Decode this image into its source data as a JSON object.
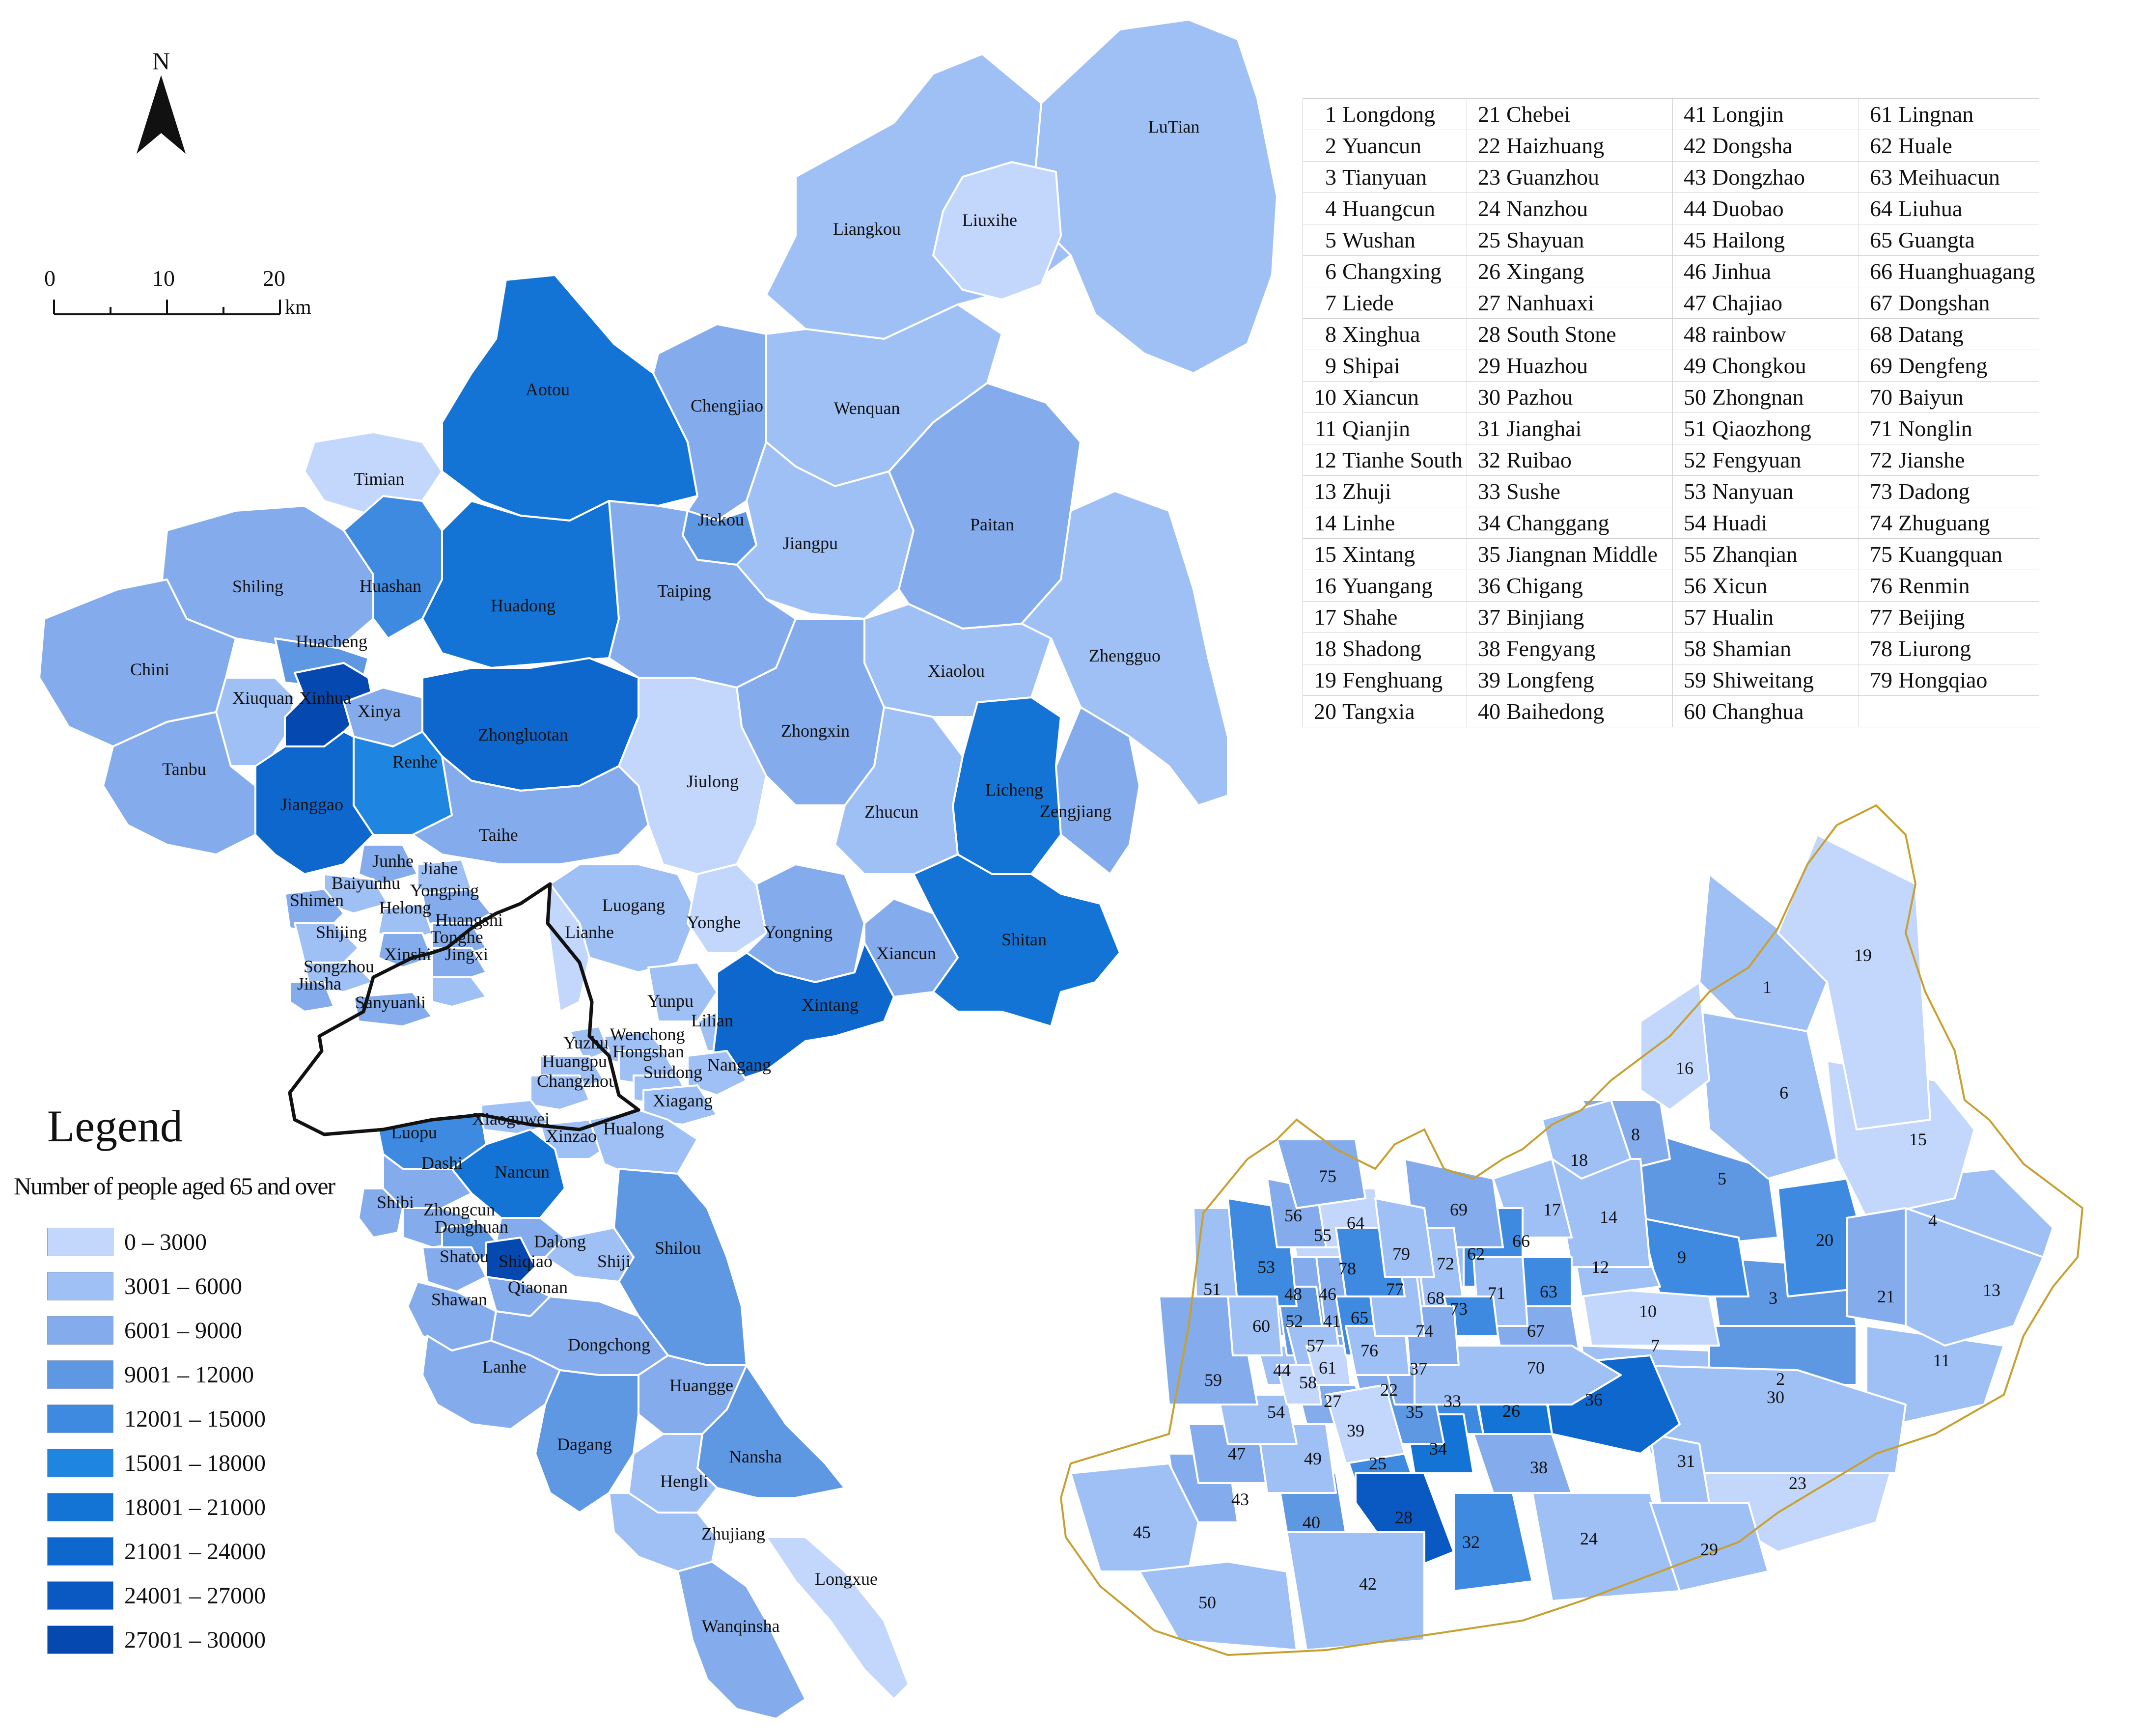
{
  "north_label": "N",
  "scale": {
    "ticks": [
      "0",
      "10",
      "20"
    ],
    "unit": "km"
  },
  "legend": {
    "title": "Legend",
    "subtitle": "Number of people aged 65 and over",
    "classes": [
      {
        "label": "0 – 3000",
        "color": "#c2d7fb"
      },
      {
        "label": "3001 – 6000",
        "color": "#9fc0f5"
      },
      {
        "label": "6001 – 9000",
        "color": "#84acec"
      },
      {
        "label": "9001 – 12000",
        "color": "#5f98e2"
      },
      {
        "label": "12001 – 15000",
        "color": "#3d8ae0"
      },
      {
        "label": "15001 – 18000",
        "color": "#1e86e0"
      },
      {
        "label": "18001 – 21000",
        "color": "#1474d6"
      },
      {
        "label": "21001 – 24000",
        "color": "#0e67cc"
      },
      {
        "label": "24001 – 27000",
        "color": "#0a58c2"
      },
      {
        "label": "27001 – 30000",
        "color": "#0548b0"
      }
    ]
  },
  "index_table": [
    [
      "1",
      "Longdong",
      "21",
      "Chebei",
      "41",
      "Longjin",
      "61",
      "Lingnan"
    ],
    [
      "2",
      "Yuancun",
      "22",
      "Haizhuang",
      "42",
      "Dongsha",
      "62",
      "Huale"
    ],
    [
      "3",
      "Tianyuan",
      "23",
      "Guanzhou",
      "43",
      "Dongzhao",
      "63",
      "Meihuacun"
    ],
    [
      "4",
      "Huangcun",
      "24",
      "Nanzhou",
      "44",
      "Duobao",
      "64",
      "Liuhua"
    ],
    [
      "5",
      "Wushan",
      "25",
      "Shayuan",
      "45",
      "Hailong",
      "65",
      "Guangta"
    ],
    [
      "6",
      "Changxing",
      "26",
      "Xingang",
      "46",
      "Jinhua",
      "66",
      "Huanghuagang"
    ],
    [
      "7",
      "Liede",
      "27",
      "Nanhuaxi",
      "47",
      "Chajiao",
      "67",
      "Dongshan"
    ],
    [
      "8",
      "Xinghua",
      "28",
      "South Stone",
      "48",
      "rainbow",
      "68",
      "Datang"
    ],
    [
      "9",
      "Shipai",
      "29",
      "Huazhou",
      "49",
      "Chongkou",
      "69",
      "Dengfeng"
    ],
    [
      "10",
      "Xiancun",
      "30",
      "Pazhou",
      "50",
      "Zhongnan",
      "70",
      "Baiyun"
    ],
    [
      "11",
      "Qianjin",
      "31",
      "Jianghai",
      "51",
      "Qiaozhong",
      "71",
      "Nonglin"
    ],
    [
      "12",
      "Tianhe South",
      "32",
      "Ruibao",
      "52",
      "Fengyuan",
      "72",
      "Jianshe"
    ],
    [
      "13",
      "Zhuji",
      "33",
      "Sushe",
      "53",
      "Nanyuan",
      "73",
      "Dadong"
    ],
    [
      "14",
      "Linhe",
      "34",
      "Changgang",
      "54",
      "Huadi",
      "74",
      "Zhuguang"
    ],
    [
      "15",
      "Xintang",
      "35",
      "Jiangnan Middle",
      "55",
      "Zhanqian",
      "75",
      "Kuangquan"
    ],
    [
      "16",
      "Yuangang",
      "36",
      "Chigang",
      "56",
      "Xicun",
      "76",
      "Renmin"
    ],
    [
      "17",
      "Shahe",
      "37",
      "Binjiang",
      "57",
      "Hualin",
      "77",
      "Beijing"
    ],
    [
      "18",
      "Shadong",
      "38",
      "Fengyang",
      "58",
      "Shamian",
      "78",
      "Liurong"
    ],
    [
      "19",
      "Fenghuang",
      "39",
      "Longfeng",
      "59",
      "Shiweitang",
      "79",
      "Hongqiao"
    ],
    [
      "20",
      "Tangxia",
      "40",
      "Baihedong",
      "60",
      "Changhua",
      "",
      ""
    ]
  ],
  "regions": [
    {
      "name": "LuTian",
      "color": "#9fc0f5"
    },
    {
      "name": "Liangkou",
      "color": "#9fc0f5"
    },
    {
      "name": "Liuxihe",
      "color": "#c2d7fb"
    },
    {
      "name": "Aotou",
      "color": "#1474d6"
    },
    {
      "name": "Chengjiao",
      "color": "#84acec"
    },
    {
      "name": "Wenquan",
      "color": "#9fc0f5"
    },
    {
      "name": "Timian",
      "color": "#c2d7fb"
    },
    {
      "name": "Jiekou",
      "color": "#5f98e2"
    },
    {
      "name": "Jiangpu",
      "color": "#9fc0f5"
    },
    {
      "name": "Paitan",
      "color": "#84acec"
    },
    {
      "name": "Shiling",
      "color": "#84acec"
    },
    {
      "name": "Huashan",
      "color": "#3d8ae0"
    },
    {
      "name": "Huadong",
      "color": "#1474d6"
    },
    {
      "name": "Taiping",
      "color": "#84acec"
    },
    {
      "name": "Chini",
      "color": "#84acec"
    },
    {
      "name": "Huacheng",
      "color": "#5f98e2"
    },
    {
      "name": "Xiuquan",
      "color": "#9fc0f5"
    },
    {
      "name": "Xinhua",
      "color": "#0548b0"
    },
    {
      "name": "Xinya",
      "color": "#84acec"
    },
    {
      "name": "Zhongluotan",
      "color": "#0e67cc"
    },
    {
      "name": "Xiaolou",
      "color": "#9fc0f5"
    },
    {
      "name": "Zhengguo",
      "color": "#9fc0f5"
    },
    {
      "name": "Zhongxin",
      "color": "#84acec"
    },
    {
      "name": "Tanbu",
      "color": "#84acec"
    },
    {
      "name": "Renhe",
      "color": "#1e86e0"
    },
    {
      "name": "Jianggao",
      "color": "#0e67cc"
    },
    {
      "name": "Jiulong",
      "color": "#c2d7fb"
    },
    {
      "name": "Licheng",
      "color": "#1474d6"
    },
    {
      "name": "Zengjiang",
      "color": "#84acec"
    },
    {
      "name": "Zhucun",
      "color": "#9fc0f5"
    },
    {
      "name": "Taihe",
      "color": "#84acec"
    },
    {
      "name": "Junhe",
      "color": "#84acec"
    },
    {
      "name": "Jiahe",
      "color": "#9fc0f5"
    },
    {
      "name": "Baiyunhu",
      "color": "#9fc0f5"
    },
    {
      "name": "Yongping",
      "color": "#84acec"
    },
    {
      "name": "Shimen",
      "color": "#84acec"
    },
    {
      "name": "Helong",
      "color": "#9fc0f5"
    },
    {
      "name": "Huangshi",
      "color": "#84acec"
    },
    {
      "name": "Luogang",
      "color": "#9fc0f5"
    },
    {
      "name": "Yonghe",
      "color": "#c2d7fb"
    },
    {
      "name": "Yongning",
      "color": "#84acec"
    },
    {
      "name": "Xiancun",
      "color": "#84acec"
    },
    {
      "name": "Shitan",
      "color": "#1474d6"
    },
    {
      "name": "Shijing",
      "color": "#9fc0f5"
    },
    {
      "name": "Tonghe",
      "color": "#84acec"
    },
    {
      "name": "Lianhe",
      "color": "#c2d7fb"
    },
    {
      "name": "Songzhou",
      "color": "#9fc0f5"
    },
    {
      "name": "Xinshi",
      "color": "#84acec"
    },
    {
      "name": "Jingxi",
      "color": "#9fc0f5"
    },
    {
      "name": "Jinsha",
      "color": "#84acec"
    },
    {
      "name": "Sanyuanli",
      "color": "#84acec"
    },
    {
      "name": "Dashi",
      "color": "#84acec"
    },
    {
      "name": "Yunpu",
      "color": "#9fc0f5"
    },
    {
      "name": "Lilian",
      "color": "#9fc0f5"
    },
    {
      "name": "Xintang",
      "color": "#0e67cc"
    },
    {
      "name": "Wenchong",
      "color": "#9fc0f5"
    },
    {
      "name": "Hongshan",
      "color": "#9fc0f5"
    },
    {
      "name": "Yuzhu",
      "color": "#9fc0f5"
    },
    {
      "name": "Nangang",
      "color": "#9fc0f5"
    },
    {
      "name": "Huangpu",
      "color": "#9fc0f5"
    },
    {
      "name": "Suidong",
      "color": "#9fc0f5"
    },
    {
      "name": "Changzhou",
      "color": "#9fc0f5"
    },
    {
      "name": "Xiagang",
      "color": "#9fc0f5"
    },
    {
      "name": "Xiaoguwei",
      "color": "#9fc0f5"
    },
    {
      "name": "Xinzao",
      "color": "#9fc0f5"
    },
    {
      "name": "Hualong",
      "color": "#9fc0f5"
    },
    {
      "name": "Luopu",
      "color": "#3d8ae0"
    },
    {
      "name": "Nancun",
      "color": "#1474d6"
    },
    {
      "name": "Shibi",
      "color": "#84acec"
    },
    {
      "name": "Zhongcun",
      "color": "#84acec"
    },
    {
      "name": "Donghuan",
      "color": "#5f98e2"
    },
    {
      "name": "Dalong",
      "color": "#84acec"
    },
    {
      "name": "Shiqiao",
      "color": "#0548b0"
    },
    {
      "name": "Shatou",
      "color": "#84acec"
    },
    {
      "name": "Qiaonan",
      "color": "#84acec"
    },
    {
      "name": "Shiji",
      "color": "#9fc0f5"
    },
    {
      "name": "Shilou",
      "color": "#5f98e2"
    },
    {
      "name": "Shawan",
      "color": "#84acec"
    },
    {
      "name": "Dongchong",
      "color": "#84acec"
    },
    {
      "name": "Lanhe",
      "color": "#84acec"
    },
    {
      "name": "Huangge",
      "color": "#84acec"
    },
    {
      "name": "Dagang",
      "color": "#5f98e2"
    },
    {
      "name": "Nansha",
      "color": "#5f98e2"
    },
    {
      "name": "Hengli",
      "color": "#9fc0f5"
    },
    {
      "name": "Zhujiang",
      "color": "#9fc0f5"
    },
    {
      "name": "Longxue",
      "color": "#c2d7fb"
    },
    {
      "name": "Wanqinsha",
      "color": "#84acec"
    }
  ],
  "inset_regions": [
    {
      "id": "1",
      "color": "#9fc0f5"
    },
    {
      "id": "2",
      "color": "#5f98e2"
    },
    {
      "id": "3",
      "color": "#5f98e2"
    },
    {
      "id": "4",
      "color": "#9fc0f5"
    },
    {
      "id": "5",
      "color": "#5f98e2"
    },
    {
      "id": "6",
      "color": "#9fc0f5"
    },
    {
      "id": "7",
      "color": "#9fc0f5"
    },
    {
      "id": "8",
      "color": "#84acec"
    },
    {
      "id": "9",
      "color": "#3d8ae0"
    },
    {
      "id": "10",
      "color": "#c2d7fb"
    },
    {
      "id": "11",
      "color": "#9fc0f5"
    },
    {
      "id": "12",
      "color": "#9fc0f5"
    },
    {
      "id": "13",
      "color": "#9fc0f5"
    },
    {
      "id": "14",
      "color": "#9fc0f5"
    },
    {
      "id": "15",
      "color": "#c2d7fb"
    },
    {
      "id": "16",
      "color": "#c2d7fb"
    },
    {
      "id": "17",
      "color": "#9fc0f5"
    },
    {
      "id": "18",
      "color": "#9fc0f5"
    },
    {
      "id": "19",
      "color": "#c2d7fb"
    },
    {
      "id": "20",
      "color": "#3d8ae0"
    },
    {
      "id": "21",
      "color": "#84acec"
    },
    {
      "id": "22",
      "color": "#84acec"
    },
    {
      "id": "23",
      "color": "#c2d7fb"
    },
    {
      "id": "24",
      "color": "#9fc0f5"
    },
    {
      "id": "25",
      "color": "#3d8ae0"
    },
    {
      "id": "26",
      "color": "#1474d6"
    },
    {
      "id": "27",
      "color": "#84acec"
    },
    {
      "id": "28",
      "color": "#0a58c2"
    },
    {
      "id": "29",
      "color": "#9fc0f5"
    },
    {
      "id": "30",
      "color": "#9fc0f5"
    },
    {
      "id": "31",
      "color": "#9fc0f5"
    },
    {
      "id": "32",
      "color": "#3d8ae0"
    },
    {
      "id": "33",
      "color": "#3d8ae0"
    },
    {
      "id": "34",
      "color": "#1474d6"
    },
    {
      "id": "35",
      "color": "#5f98e2"
    },
    {
      "id": "36",
      "color": "#0e67cc"
    },
    {
      "id": "37",
      "color": "#84acec"
    },
    {
      "id": "38",
      "color": "#84acec"
    },
    {
      "id": "39",
      "color": "#c2d7fb"
    },
    {
      "id": "40",
      "color": "#5f98e2"
    },
    {
      "id": "41",
      "color": "#84acec"
    },
    {
      "id": "42",
      "color": "#9fc0f5"
    },
    {
      "id": "43",
      "color": "#84acec"
    },
    {
      "id": "44",
      "color": "#9fc0f5"
    },
    {
      "id": "45",
      "color": "#9fc0f5"
    },
    {
      "id": "46",
      "color": "#84acec"
    },
    {
      "id": "47",
      "color": "#84acec"
    },
    {
      "id": "48",
      "color": "#84acec"
    },
    {
      "id": "49",
      "color": "#9fc0f5"
    },
    {
      "id": "50",
      "color": "#9fc0f5"
    },
    {
      "id": "51",
      "color": "#9fc0f5"
    },
    {
      "id": "52",
      "color": "#5f98e2"
    },
    {
      "id": "53",
      "color": "#3d8ae0"
    },
    {
      "id": "54",
      "color": "#9fc0f5"
    },
    {
      "id": "55",
      "color": "#c2d7fb"
    },
    {
      "id": "56",
      "color": "#84acec"
    },
    {
      "id": "57",
      "color": "#9fc0f5"
    },
    {
      "id": "58",
      "color": "#c2d7fb"
    },
    {
      "id": "59",
      "color": "#84acec"
    },
    {
      "id": "60",
      "color": "#9fc0f5"
    },
    {
      "id": "61",
      "color": "#c2d7fb"
    },
    {
      "id": "62",
      "color": "#9fc0f5"
    },
    {
      "id": "63",
      "color": "#3d8ae0"
    },
    {
      "id": "64",
      "color": "#c2d7fb"
    },
    {
      "id": "65",
      "color": "#3d8ae0"
    },
    {
      "id": "66",
      "color": "#3d8ae0"
    },
    {
      "id": "67",
      "color": "#84acec"
    },
    {
      "id": "68",
      "color": "#9fc0f5"
    },
    {
      "id": "69",
      "color": "#84acec"
    },
    {
      "id": "70",
      "color": "#9fc0f5"
    },
    {
      "id": "71",
      "color": "#9fc0f5"
    },
    {
      "id": "72",
      "color": "#9fc0f5"
    },
    {
      "id": "73",
      "color": "#3d8ae0"
    },
    {
      "id": "74",
      "color": "#84acec"
    },
    {
      "id": "75",
      "color": "#84acec"
    },
    {
      "id": "76",
      "color": "#9fc0f5"
    },
    {
      "id": "77",
      "color": "#9fc0f5"
    },
    {
      "id": "78",
      "color": "#3d8ae0"
    },
    {
      "id": "79",
      "color": "#9fc0f5"
    }
  ]
}
